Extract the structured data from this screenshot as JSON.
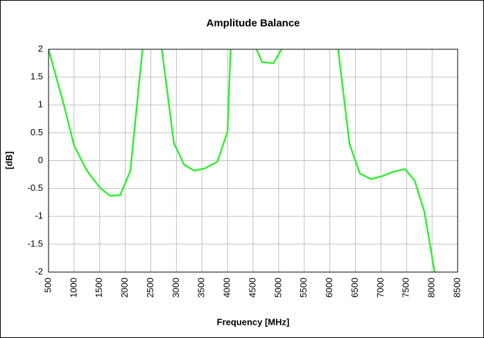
{
  "chart_data": {
    "type": "line",
    "title": "Amplitude Balance",
    "xlabel": "Frequency [MHz]",
    "ylabel": "[dB]",
    "x": [
      500,
      800,
      1000,
      1250,
      1500,
      1700,
      1900,
      2100,
      2500,
      2750,
      2950,
      3150,
      3350,
      3550,
      3800,
      4000,
      4100,
      4675,
      4900,
      5055,
      5600,
      6150,
      6385,
      6588,
      6805,
      7022,
      7240,
      7470,
      7660,
      7850,
      8050
    ],
    "series": [
      {
        "name": "Amplitude Balance",
        "color": "#33ee33",
        "values": [
          2.0,
          1.0,
          0.27,
          -0.18,
          -0.48,
          -0.63,
          -0.62,
          -0.18,
          3.5,
          1.75,
          0.32,
          -0.07,
          -0.18,
          -0.14,
          -0.02,
          0.52,
          3.0,
          1.77,
          1.75,
          2.0,
          3.0,
          2.1,
          0.3,
          -0.23,
          -0.33,
          -0.28,
          -0.2,
          -0.15,
          -0.36,
          -0.92,
          -2.0
        ]
      }
    ],
    "xlim": [
      500,
      8500
    ],
    "xticks": [
      500,
      1000,
      1500,
      2000,
      2500,
      3000,
      3500,
      4000,
      4500,
      5000,
      5500,
      6000,
      6500,
      7000,
      7500,
      8000,
      8500
    ],
    "ylim": [
      -2,
      2
    ],
    "yticks": [
      -2,
      -1.5,
      -1,
      -0.5,
      0,
      0.5,
      1,
      1.5,
      2
    ],
    "grid": true
  }
}
